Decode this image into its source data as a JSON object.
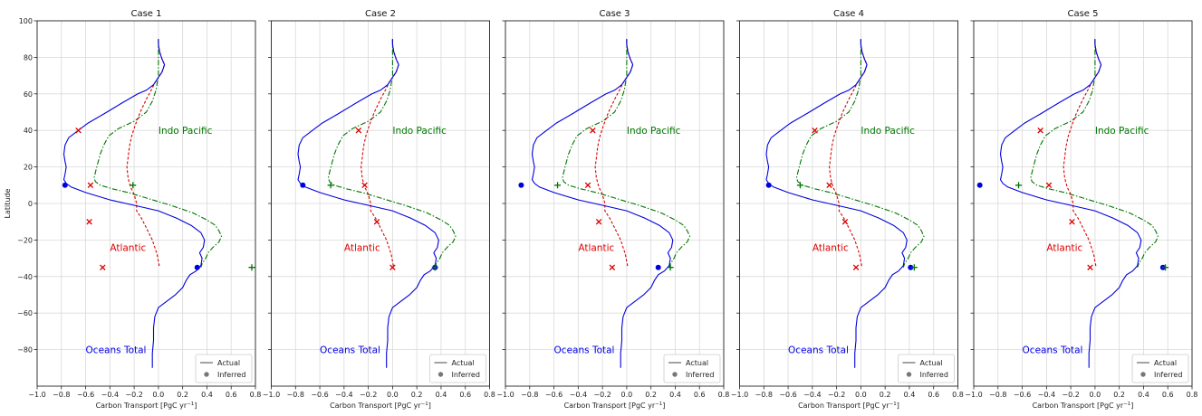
{
  "figure": {
    "xlabel": "Carbon Transport [PgC yr",
    "xlabel_sup": "−1",
    "xlabel_end": "]",
    "ylabel": "Latitude"
  },
  "legend": {
    "actual": "Actual",
    "inferred": "Inferred"
  },
  "annotations": {
    "indo": "Indo Pacific",
    "atlantic": "Atlantic",
    "total": "Oceans Total"
  },
  "colors": {
    "total": "#0000dd",
    "atlantic": "#dd0000",
    "indo": "#007700"
  },
  "chart_data": [
    {
      "type": "line",
      "title": "Case 1",
      "xlim": [
        -1.0,
        0.8
      ],
      "ylim": [
        -100,
        100
      ],
      "xticks": [
        "−1.0",
        "−0.8",
        "−0.6",
        "−0.4",
        "−0.2",
        "0.0",
        "0.2",
        "0.4",
        "0.6",
        "0.8"
      ],
      "yticks": [
        "100",
        "80",
        "60",
        "40",
        "20",
        "0",
        "−20",
        "−40",
        "−60",
        "−80"
      ],
      "inferred": {
        "total": [
          [
            -0.77,
            10
          ],
          [
            0.32,
            -35
          ]
        ],
        "atlantic": [
          [
            -0.66,
            40
          ],
          [
            -0.56,
            10
          ],
          [
            -0.57,
            -10
          ],
          [
            -0.46,
            -35
          ]
        ],
        "indo": [
          [
            -0.21,
            10
          ],
          [
            0.77,
            -35
          ]
        ]
      }
    },
    {
      "type": "line",
      "title": "Case 2",
      "xlim": [
        -1.0,
        0.8
      ],
      "ylim": [
        -100,
        100
      ],
      "xticks": [
        "−1.0",
        "−0.8",
        "−0.6",
        "−0.4",
        "−0.2",
        "0.0",
        "0.2",
        "0.4",
        "0.6",
        "0.8"
      ],
      "yticks": [
        "100",
        "80",
        "60",
        "40",
        "20",
        "0",
        "−20",
        "−40",
        "−60",
        "−80"
      ],
      "inferred": {
        "total": [
          [
            -0.74,
            10
          ],
          [
            0.35,
            -35
          ]
        ],
        "atlantic": [
          [
            -0.28,
            40
          ],
          [
            -0.23,
            10
          ],
          [
            -0.13,
            -10
          ],
          [
            0.0,
            -35
          ]
        ],
        "indo": [
          [
            -0.51,
            10
          ],
          [
            0.35,
            -35
          ]
        ]
      }
    },
    {
      "type": "line",
      "title": "Case 3",
      "xlim": [
        -1.0,
        0.8
      ],
      "ylim": [
        -100,
        100
      ],
      "xticks": [
        "−1.0",
        "−0.8",
        "−0.6",
        "−0.4",
        "−0.2",
        "0.0",
        "0.2",
        "0.4",
        "0.6",
        "0.8"
      ],
      "yticks": [
        "100",
        "80",
        "60",
        "40",
        "20",
        "0",
        "−20",
        "−40",
        "−60",
        "−80"
      ],
      "inferred": {
        "total": [
          [
            -0.87,
            10
          ],
          [
            0.26,
            -35
          ]
        ],
        "atlantic": [
          [
            -0.28,
            40
          ],
          [
            -0.32,
            10
          ],
          [
            -0.23,
            -10
          ],
          [
            -0.12,
            -35
          ]
        ],
        "indo": [
          [
            -0.57,
            10
          ],
          [
            0.36,
            -35
          ]
        ]
      }
    },
    {
      "type": "line",
      "title": "Case 4",
      "xlim": [
        -1.0,
        0.8
      ],
      "ylim": [
        -100,
        100
      ],
      "xticks": [
        "−1.0",
        "−0.8",
        "−0.6",
        "−0.4",
        "−0.2",
        "0.0",
        "0.2",
        "0.4",
        "0.6",
        "0.8"
      ],
      "yticks": [
        "100",
        "80",
        "60",
        "40",
        "20",
        "0",
        "−20",
        "−40",
        "−60",
        "−80"
      ],
      "inferred": {
        "total": [
          [
            -0.76,
            10
          ],
          [
            0.41,
            -35
          ]
        ],
        "atlantic": [
          [
            -0.38,
            40
          ],
          [
            -0.26,
            10
          ],
          [
            -0.13,
            -10
          ],
          [
            -0.04,
            -35
          ]
        ],
        "indo": [
          [
            -0.5,
            10
          ],
          [
            0.44,
            -35
          ]
        ]
      }
    },
    {
      "type": "line",
      "title": "Case 5",
      "xlim": [
        -1.0,
        0.8
      ],
      "ylim": [
        -100,
        100
      ],
      "xticks": [
        "−1.0",
        "−0.8",
        "−0.6",
        "−0.4",
        "−0.2",
        "0.0",
        "0.2",
        "0.4",
        "0.6",
        "0.8"
      ],
      "yticks": [
        "100",
        "80",
        "60",
        "40",
        "20",
        "0",
        "−20",
        "−40",
        "−60",
        "−80"
      ],
      "inferred": {
        "total": [
          [
            -0.95,
            10
          ],
          [
            0.56,
            -35
          ]
        ],
        "atlantic": [
          [
            -0.45,
            40
          ],
          [
            -0.38,
            10
          ],
          [
            -0.19,
            -10
          ],
          [
            -0.04,
            -35
          ]
        ],
        "indo": [
          [
            -0.63,
            10
          ],
          [
            0.58,
            -35
          ]
        ]
      }
    }
  ],
  "actual_curves": {
    "total": [
      [
        0.0,
        90
      ],
      [
        0.0,
        87
      ],
      [
        0.01,
        83
      ],
      [
        0.03,
        79
      ],
      [
        0.05,
        76
      ],
      [
        0.03,
        72
      ],
      [
        0.0,
        69
      ],
      [
        -0.04,
        65
      ],
      [
        -0.1,
        62
      ],
      [
        -0.17,
        60
      ],
      [
        -0.3,
        55
      ],
      [
        -0.45,
        49
      ],
      [
        -0.58,
        44
      ],
      [
        -0.68,
        39
      ],
      [
        -0.74,
        36
      ],
      [
        -0.77,
        32
      ],
      [
        -0.78,
        27
      ],
      [
        -0.77,
        23
      ],
      [
        -0.76,
        20
      ],
      [
        -0.77,
        16
      ],
      [
        -0.78,
        13
      ],
      [
        -0.76,
        11
      ],
      [
        -0.72,
        9
      ],
      [
        -0.6,
        6
      ],
      [
        -0.4,
        2
      ],
      [
        -0.2,
        -1
      ],
      [
        0.0,
        -4
      ],
      [
        0.15,
        -8
      ],
      [
        0.27,
        -12
      ],
      [
        0.35,
        -16
      ],
      [
        0.38,
        -20
      ],
      [
        0.37,
        -24
      ],
      [
        0.34,
        -27
      ],
      [
        0.36,
        -30
      ],
      [
        0.35,
        -34
      ],
      [
        0.31,
        -37
      ],
      [
        0.26,
        -39
      ],
      [
        0.23,
        -42
      ],
      [
        0.2,
        -46
      ],
      [
        0.14,
        -50
      ],
      [
        0.06,
        -54
      ],
      [
        0.0,
        -57
      ],
      [
        -0.03,
        -62
      ],
      [
        -0.04,
        -68
      ],
      [
        -0.04,
        -75
      ],
      [
        -0.05,
        -82
      ],
      [
        -0.05,
        -90
      ]
    ],
    "atlantic": [
      [
        0.0,
        90
      ],
      [
        0.0,
        87
      ],
      [
        0.01,
        83
      ],
      [
        0.03,
        79
      ],
      [
        0.05,
        76
      ],
      [
        0.03,
        72
      ],
      [
        0.0,
        69
      ],
      [
        -0.03,
        66
      ],
      [
        -0.06,
        62
      ],
      [
        -0.1,
        57
      ],
      [
        -0.15,
        50
      ],
      [
        -0.19,
        43
      ],
      [
        -0.22,
        37
      ],
      [
        -0.24,
        31
      ],
      [
        -0.25,
        25
      ],
      [
        -0.26,
        20
      ],
      [
        -0.25,
        14
      ],
      [
        -0.23,
        9
      ],
      [
        -0.2,
        5
      ],
      [
        -0.18,
        0
      ],
      [
        -0.18,
        -4
      ],
      [
        -0.14,
        -8
      ],
      [
        -0.11,
        -12
      ],
      [
        -0.08,
        -16
      ],
      [
        -0.05,
        -20
      ],
      [
        -0.03,
        -24
      ],
      [
        -0.01,
        -28
      ],
      [
        0.0,
        -32
      ],
      [
        0.01,
        -35
      ]
    ],
    "indo": [
      [
        0.0,
        90
      ],
      [
        0.0,
        80
      ],
      [
        0.0,
        70
      ],
      [
        -0.02,
        62
      ],
      [
        -0.05,
        56
      ],
      [
        -0.1,
        50
      ],
      [
        -0.2,
        45
      ],
      [
        -0.33,
        41
      ],
      [
        -0.41,
        37
      ],
      [
        -0.45,
        32
      ],
      [
        -0.48,
        27
      ],
      [
        -0.5,
        22
      ],
      [
        -0.52,
        17
      ],
      [
        -0.53,
        14
      ],
      [
        -0.52,
        12
      ],
      [
        -0.48,
        10
      ],
      [
        -0.38,
        8
      ],
      [
        -0.25,
        6
      ],
      [
        -0.1,
        3
      ],
      [
        0.1,
        -1
      ],
      [
        0.28,
        -5
      ],
      [
        0.4,
        -9
      ],
      [
        0.47,
        -12
      ],
      [
        0.5,
        -15
      ],
      [
        0.52,
        -18
      ],
      [
        0.5,
        -21
      ],
      [
        0.45,
        -24
      ],
      [
        0.41,
        -27
      ],
      [
        0.39,
        -30
      ],
      [
        0.36,
        -33
      ],
      [
        0.35,
        -35
      ]
    ]
  }
}
